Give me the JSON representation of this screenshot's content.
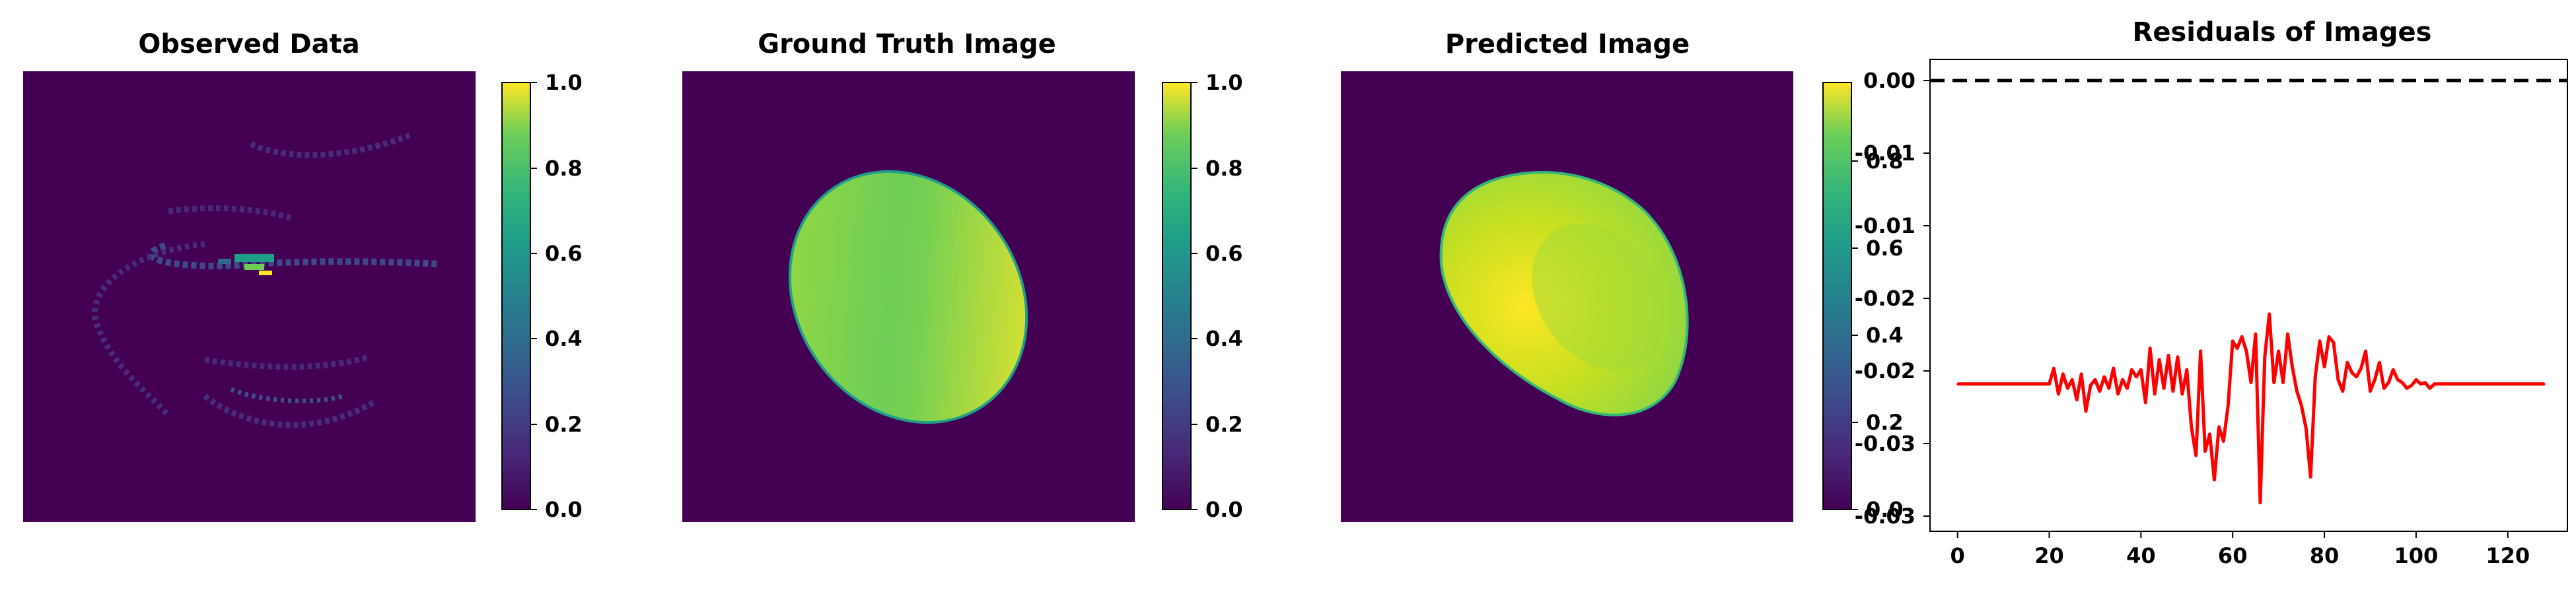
{
  "chart_data": [
    {
      "type": "heatmap",
      "title": "Observed Data",
      "colormap": "viridis",
      "colorbar": {
        "ticks": [
          "0.0",
          "0.2",
          "0.4",
          "0.6",
          "0.8",
          "1.0"
        ],
        "range": [
          0,
          1
        ]
      },
      "content": "sparse spiral-shaped sampling trajectory, mostly low values with a bright cluster near center"
    },
    {
      "type": "heatmap",
      "title": "Ground Truth Image",
      "colormap": "viridis",
      "colorbar": {
        "ticks": [
          "0.0",
          "0.2",
          "0.4",
          "0.6",
          "0.8",
          "1.0"
        ],
        "range": [
          0,
          1
        ]
      },
      "content": "tilted ellipse with values ~0.75 to 1.0 on a zero background"
    },
    {
      "type": "heatmap",
      "title": "Predicted Image",
      "colormap": "viridis",
      "colorbar": {
        "ticks": [
          "0.0",
          "0.2",
          "0.4",
          "0.6",
          "0.8"
        ],
        "range": [
          0,
          0.98
        ]
      },
      "content": "blurred reconstruction of the tilted ellipse"
    },
    {
      "type": "line",
      "title": "Residuals of Images",
      "color": "#ff0000",
      "reference_line": {
        "y": 0.0,
        "style": "dashed",
        "color": "#000000"
      },
      "xticks": [
        "0",
        "20",
        "40",
        "60",
        "80",
        "100",
        "120"
      ],
      "yticks": [
        "0.00",
        "-0.01",
        "-0.01",
        "-0.02",
        "-0.02",
        "-0.03",
        "-0.03"
      ],
      "xlim": [
        -6,
        133
      ],
      "ylim": [
        -0.0318,
        0.0012
      ],
      "x": [
        0,
        20,
        21,
        22,
        23,
        24,
        25,
        26,
        27,
        28,
        29,
        30,
        31,
        32,
        33,
        34,
        35,
        36,
        37,
        38,
        39,
        40,
        41,
        42,
        43,
        44,
        45,
        46,
        47,
        48,
        49,
        50,
        51,
        52,
        53,
        54,
        55,
        56,
        57,
        58,
        59,
        60,
        61,
        62,
        63,
        64,
        65,
        66,
        67,
        68,
        69,
        70,
        71,
        72,
        73,
        74,
        75,
        76,
        77,
        78,
        79,
        80,
        81,
        82,
        83,
        84,
        85,
        86,
        87,
        88,
        89,
        90,
        91,
        92,
        93,
        94,
        95,
        96,
        97,
        98,
        99,
        100,
        101,
        102,
        103,
        104,
        105,
        106,
        107,
        108,
        109,
        110,
        111,
        112,
        128
      ],
      "y": [
        -0.0215,
        -0.0215,
        -0.0204,
        -0.0222,
        -0.0208,
        -0.0218,
        -0.0212,
        -0.0226,
        -0.0208,
        -0.0234,
        -0.0216,
        -0.0212,
        -0.022,
        -0.021,
        -0.0218,
        -0.0204,
        -0.0222,
        -0.0212,
        -0.0218,
        -0.0205,
        -0.021,
        -0.0205,
        -0.0228,
        -0.019,
        -0.0222,
        -0.0198,
        -0.0218,
        -0.0195,
        -0.022,
        -0.0196,
        -0.0222,
        -0.0205,
        -0.0245,
        -0.0265,
        -0.0192,
        -0.0262,
        -0.025,
        -0.0282,
        -0.0245,
        -0.0255,
        -0.023,
        -0.0185,
        -0.019,
        -0.0182,
        -0.0192,
        -0.0214,
        -0.018,
        -0.0298,
        -0.0196,
        -0.0166,
        -0.0214,
        -0.0192,
        -0.0214,
        -0.018,
        -0.0203,
        -0.022,
        -0.023,
        -0.0246,
        -0.028,
        -0.021,
        -0.0185,
        -0.0203,
        -0.0182,
        -0.0186,
        -0.0212,
        -0.022,
        -0.02,
        -0.0207,
        -0.021,
        -0.0204,
        -0.0192,
        -0.022,
        -0.0212,
        -0.02,
        -0.0218,
        -0.0214,
        -0.0205,
        -0.0212,
        -0.0214,
        -0.0218,
        -0.0216,
        -0.0212,
        -0.0215,
        -0.0214,
        -0.0218,
        -0.0215,
        -0.0215,
        -0.0215,
        -0.0215,
        -0.0215,
        -0.0215,
        -0.0215,
        -0.0215,
        -0.0215,
        -0.0215
      ]
    }
  ]
}
